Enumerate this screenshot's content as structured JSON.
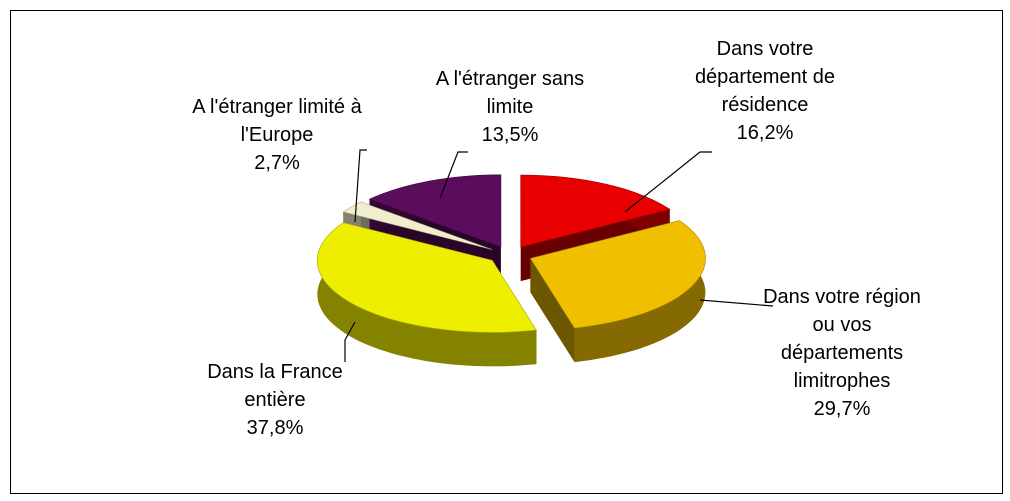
{
  "chart_data": {
    "type": "pie3d",
    "categories": [
      "Dans votre département de résidence",
      "Dans votre région ou vos départements limitrophes",
      "Dans la France entière",
      "A l'étranger limité à l'Europe",
      "A l'étranger sans limite"
    ],
    "values": [
      16.2,
      29.7,
      37.8,
      2.7,
      13.5
    ],
    "value_labels": [
      "16,2%",
      "29,7%",
      "37,8%",
      "2,7%",
      "13,5%"
    ],
    "colors": [
      "#e80000",
      "#f0c000",
      "#eeee00",
      "#f2eecc",
      "#5c0c5c"
    ]
  }
}
